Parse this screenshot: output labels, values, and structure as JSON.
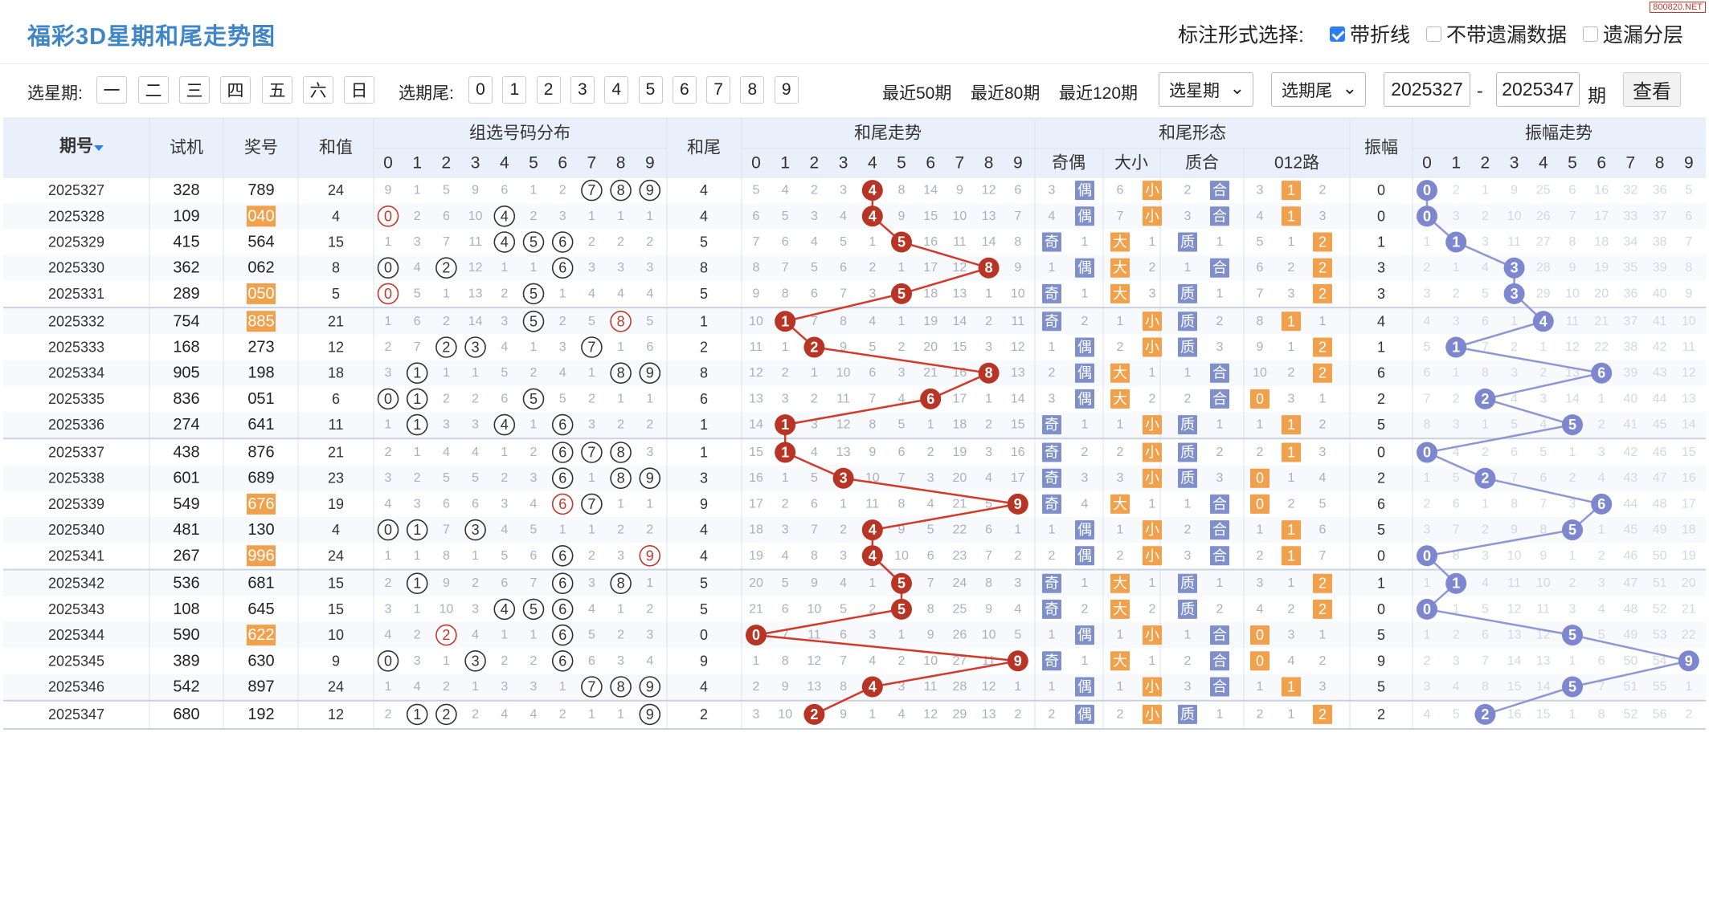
{
  "header": {
    "title": "福彩3D星期和尾走势图",
    "site": "800820.NET",
    "annot_label": "标注形式选择:",
    "opt_line": "带折线",
    "opt_nomiss": "不带遗漏数据",
    "opt_layer": "遗漏分层"
  },
  "filter": {
    "week_label": "选星期:",
    "weekdays": [
      "一",
      "二",
      "三",
      "四",
      "五",
      "六",
      "日"
    ],
    "tail_label": "选期尾:",
    "tails": [
      "0",
      "1",
      "2",
      "3",
      "4",
      "5",
      "6",
      "7",
      "8",
      "9"
    ],
    "recent50": "最近50期",
    "recent80": "最近80期",
    "recent120": "最近120期",
    "week_select": "选星期",
    "tail_select": "选期尾",
    "start": "2025327",
    "sep": "-",
    "end": "2025347",
    "unit": "期",
    "go": "查看"
  },
  "table": {
    "h_issue": "期号",
    "h_test": "试机",
    "h_prize": "奖号",
    "h_sum": "和值",
    "h_dist": "组选号码分布",
    "h_tail": "和尾",
    "h_trend": "和尾走势",
    "h_form": "和尾形态",
    "h_oe": "奇偶",
    "h_bs": "大小",
    "h_pc": "质合",
    "h_012": "012路",
    "h_amp": "振幅",
    "h_ampt": "振幅走势",
    "digits": [
      "0",
      "1",
      "2",
      "3",
      "4",
      "5",
      "6",
      "7",
      "8",
      "9"
    ],
    "sort_icon": "sort-arrow-icon"
  },
  "form_labels": {
    "odd": "奇",
    "even": "偶",
    "big": "大",
    "small": "小",
    "prime": "质",
    "comp": "合",
    "r0": "0",
    "r1": "1",
    "r2": "2"
  },
  "colors": {
    "accent": "#3f86c8",
    "red": "#c0392b",
    "ball_red": "#b83526",
    "ball_blue": "#7c87d0",
    "tag": "#7f8fca",
    "tag_orange": "#f1a04c",
    "prize_hl": "#f1a04c",
    "line_red": "#d23a2a",
    "line_blue": "#8e97d6"
  },
  "rows": [
    {
      "issue": "2025327",
      "test": "328",
      "prize": "789",
      "hl": false,
      "sum": "24",
      "dist": [
        "9",
        "1",
        "5",
        "9",
        "6",
        "1",
        "2",
        "O",
        "O",
        "O"
      ],
      "dist_red": [],
      "tail": "4",
      "trend": [
        "5",
        "4",
        "2",
        "3",
        "B",
        "8",
        "14",
        "9",
        "12",
        "6"
      ],
      "oe": [
        "3",
        "E"
      ],
      "bs": [
        "6",
        "S"
      ],
      "pc": [
        "2",
        "C"
      ],
      "r012": [
        "3",
        "R1",
        "2"
      ],
      "amp": "0",
      "ampt": [
        "B",
        "2",
        "1",
        "9",
        "25",
        "6",
        "16",
        "32",
        "36",
        "5"
      ]
    },
    {
      "issue": "2025328",
      "test": "109",
      "prize": "040",
      "hl": true,
      "sum": "4",
      "dist": [
        "O",
        "2",
        "6",
        "10",
        "O",
        "2",
        "3",
        "1",
        "1",
        "1"
      ],
      "dist_red": [
        0
      ],
      "tail": "4",
      "trend": [
        "6",
        "5",
        "3",
        "4",
        "B",
        "9",
        "15",
        "10",
        "13",
        "7"
      ],
      "oe": [
        "4",
        "E"
      ],
      "bs": [
        "7",
        "S"
      ],
      "pc": [
        "3",
        "C"
      ],
      "r012": [
        "4",
        "R1",
        "3"
      ],
      "amp": "0",
      "ampt": [
        "B",
        "3",
        "2",
        "10",
        "26",
        "7",
        "17",
        "33",
        "37",
        "6"
      ]
    },
    {
      "issue": "2025329",
      "test": "415",
      "prize": "564",
      "hl": false,
      "sum": "15",
      "dist": [
        "1",
        "3",
        "7",
        "11",
        "O",
        "O",
        "O",
        "2",
        "2",
        "2"
      ],
      "dist_red": [],
      "tail": "5",
      "trend": [
        "7",
        "6",
        "4",
        "5",
        "1",
        "B",
        "16",
        "11",
        "14",
        "8"
      ],
      "oe": [
        "O",
        "1"
      ],
      "bs": [
        "B",
        "1"
      ],
      "pc": [
        "P",
        "1"
      ],
      "r012": [
        "5",
        "1",
        "R2"
      ],
      "amp": "1",
      "ampt": [
        "1",
        "B",
        "3",
        "11",
        "27",
        "8",
        "18",
        "34",
        "38",
        "7"
      ]
    },
    {
      "issue": "2025330",
      "test": "362",
      "prize": "062",
      "hl": false,
      "sum": "8",
      "dist": [
        "O",
        "4",
        "O",
        "12",
        "1",
        "1",
        "O",
        "3",
        "3",
        "3"
      ],
      "dist_red": [],
      "tail": "8",
      "trend": [
        "8",
        "7",
        "5",
        "6",
        "2",
        "1",
        "17",
        "12",
        "B",
        "9"
      ],
      "oe": [
        "1",
        "E"
      ],
      "bs": [
        "B",
        "2"
      ],
      "pc": [
        "1",
        "C"
      ],
      "r012": [
        "6",
        "2",
        "R2"
      ],
      "amp": "3",
      "ampt": [
        "2",
        "1",
        "4",
        "B",
        "28",
        "9",
        "19",
        "35",
        "39",
        "8"
      ]
    },
    {
      "issue": "2025331",
      "test": "289",
      "prize": "050",
      "hl": true,
      "sum": "5",
      "dist": [
        "O",
        "5",
        "1",
        "13",
        "2",
        "O",
        "1",
        "4",
        "4",
        "4"
      ],
      "dist_red": [
        0
      ],
      "tail": "5",
      "trend": [
        "9",
        "8",
        "6",
        "7",
        "3",
        "B",
        "18",
        "13",
        "1",
        "10"
      ],
      "oe": [
        "O",
        "1"
      ],
      "bs": [
        "B",
        "3"
      ],
      "pc": [
        "P",
        "1"
      ],
      "r012": [
        "7",
        "3",
        "R2"
      ],
      "amp": "3",
      "ampt": [
        "3",
        "2",
        "5",
        "B",
        "29",
        "10",
        "20",
        "36",
        "40",
        "9"
      ]
    },
    {
      "issue": "2025332",
      "test": "754",
      "prize": "885",
      "hl": true,
      "sum": "21",
      "dist": [
        "1",
        "6",
        "2",
        "14",
        "3",
        "O",
        "2",
        "5",
        "O",
        "5"
      ],
      "dist_red": [
        8
      ],
      "tail": "1",
      "trend": [
        "10",
        "B",
        "7",
        "8",
        "4",
        "1",
        "19",
        "14",
        "2",
        "11"
      ],
      "oe": [
        "O",
        "2"
      ],
      "bs": [
        "1",
        "S"
      ],
      "pc": [
        "P",
        "2"
      ],
      "r012": [
        "8",
        "R1",
        "1"
      ],
      "amp": "4",
      "ampt": [
        "4",
        "3",
        "6",
        "1",
        "B",
        "11",
        "21",
        "37",
        "41",
        "10"
      ]
    },
    {
      "issue": "2025333",
      "test": "168",
      "prize": "273",
      "hl": false,
      "sum": "12",
      "dist": [
        "2",
        "7",
        "O",
        "O",
        "4",
        "1",
        "3",
        "O",
        "1",
        "6"
      ],
      "dist_red": [],
      "tail": "2",
      "trend": [
        "11",
        "1",
        "B",
        "9",
        "5",
        "2",
        "20",
        "15",
        "3",
        "12"
      ],
      "oe": [
        "1",
        "E"
      ],
      "bs": [
        "2",
        "S"
      ],
      "pc": [
        "P",
        "3"
      ],
      "r012": [
        "9",
        "1",
        "R2"
      ],
      "amp": "1",
      "ampt": [
        "5",
        "B",
        "7",
        "2",
        "1",
        "12",
        "22",
        "38",
        "42",
        "11"
      ]
    },
    {
      "issue": "2025334",
      "test": "905",
      "prize": "198",
      "hl": false,
      "sum": "18",
      "dist": [
        "3",
        "O",
        "1",
        "1",
        "5",
        "2",
        "4",
        "1",
        "O",
        "O"
      ],
      "dist_red": [],
      "tail": "8",
      "trend": [
        "12",
        "2",
        "1",
        "10",
        "6",
        "3",
        "21",
        "16",
        "B",
        "13"
      ],
      "oe": [
        "2",
        "E"
      ],
      "bs": [
        "B",
        "1"
      ],
      "pc": [
        "1",
        "C"
      ],
      "r012": [
        "10",
        "2",
        "R2"
      ],
      "amp": "6",
      "ampt": [
        "6",
        "1",
        "8",
        "3",
        "2",
        "13",
        "B",
        "39",
        "43",
        "12"
      ]
    },
    {
      "issue": "2025335",
      "test": "836",
      "prize": "051",
      "hl": false,
      "sum": "6",
      "dist": [
        "O",
        "O",
        "2",
        "2",
        "6",
        "O",
        "5",
        "2",
        "1",
        "1"
      ],
      "dist_red": [],
      "tail": "6",
      "trend": [
        "13",
        "3",
        "2",
        "11",
        "7",
        "4",
        "B",
        "17",
        "1",
        "14"
      ],
      "oe": [
        "3",
        "E"
      ],
      "bs": [
        "B",
        "2"
      ],
      "pc": [
        "2",
        "C"
      ],
      "r012": [
        "R0",
        "3",
        "1"
      ],
      "amp": "2",
      "ampt": [
        "7",
        "2",
        "B",
        "4",
        "3",
        "14",
        "1",
        "40",
        "44",
        "13"
      ]
    },
    {
      "issue": "2025336",
      "test": "274",
      "prize": "641",
      "hl": false,
      "sum": "11",
      "dist": [
        "1",
        "O",
        "3",
        "3",
        "O",
        "1",
        "O",
        "3",
        "2",
        "2"
      ],
      "dist_red": [],
      "tail": "1",
      "trend": [
        "14",
        "B",
        "3",
        "12",
        "8",
        "5",
        "1",
        "18",
        "2",
        "15"
      ],
      "oe": [
        "O",
        "1"
      ],
      "bs": [
        "1",
        "S"
      ],
      "pc": [
        "P",
        "1"
      ],
      "r012": [
        "1",
        "R1",
        "2"
      ],
      "amp": "5",
      "ampt": [
        "8",
        "3",
        "1",
        "5",
        "4",
        "B",
        "2",
        "41",
        "45",
        "14"
      ]
    },
    {
      "issue": "2025337",
      "test": "438",
      "prize": "876",
      "hl": false,
      "sum": "21",
      "dist": [
        "2",
        "1",
        "4",
        "4",
        "1",
        "2",
        "O",
        "O",
        "O",
        "3"
      ],
      "dist_red": [],
      "tail": "1",
      "trend": [
        "15",
        "B",
        "4",
        "13",
        "9",
        "6",
        "2",
        "19",
        "3",
        "16"
      ],
      "oe": [
        "O",
        "2"
      ],
      "bs": [
        "2",
        "S"
      ],
      "pc": [
        "P",
        "2"
      ],
      "r012": [
        "2",
        "R1",
        "3"
      ],
      "amp": "0",
      "ampt": [
        "B",
        "4",
        "2",
        "6",
        "5",
        "1",
        "3",
        "42",
        "46",
        "15"
      ]
    },
    {
      "issue": "2025338",
      "test": "601",
      "prize": "689",
      "hl": false,
      "sum": "23",
      "dist": [
        "3",
        "2",
        "5",
        "5",
        "2",
        "3",
        "O",
        "1",
        "O",
        "O"
      ],
      "dist_red": [],
      "tail": "3",
      "trend": [
        "16",
        "1",
        "5",
        "B",
        "10",
        "7",
        "3",
        "20",
        "4",
        "17"
      ],
      "oe": [
        "O",
        "3"
      ],
      "bs": [
        "3",
        "S"
      ],
      "pc": [
        "P",
        "3"
      ],
      "r012": [
        "R0",
        "1",
        "4"
      ],
      "amp": "2",
      "ampt": [
        "1",
        "5",
        "B",
        "7",
        "6",
        "2",
        "4",
        "43",
        "47",
        "16"
      ]
    },
    {
      "issue": "2025339",
      "test": "549",
      "prize": "676",
      "hl": true,
      "sum": "19",
      "dist": [
        "4",
        "3",
        "6",
        "6",
        "3",
        "4",
        "O",
        "O",
        "1",
        "1"
      ],
      "dist_red": [
        6
      ],
      "tail": "9",
      "trend": [
        "17",
        "2",
        "6",
        "1",
        "11",
        "8",
        "4",
        "21",
        "5",
        "B"
      ],
      "oe": [
        "O",
        "4"
      ],
      "bs": [
        "B",
        "1"
      ],
      "pc": [
        "1",
        "C"
      ],
      "r012": [
        "R0",
        "2",
        "5"
      ],
      "amp": "6",
      "ampt": [
        "2",
        "6",
        "1",
        "8",
        "7",
        "3",
        "B",
        "44",
        "48",
        "17"
      ]
    },
    {
      "issue": "2025340",
      "test": "481",
      "prize": "130",
      "hl": false,
      "sum": "4",
      "dist": [
        "O",
        "O",
        "7",
        "O",
        "4",
        "5",
        "1",
        "1",
        "2",
        "2"
      ],
      "dist_red": [],
      "tail": "4",
      "trend": [
        "18",
        "3",
        "7",
        "2",
        "B",
        "9",
        "5",
        "22",
        "6",
        "1"
      ],
      "oe": [
        "1",
        "E"
      ],
      "bs": [
        "1",
        "S"
      ],
      "pc": [
        "2",
        "C"
      ],
      "r012": [
        "1",
        "R1",
        "6"
      ],
      "amp": "5",
      "ampt": [
        "3",
        "7",
        "2",
        "9",
        "8",
        "B",
        "1",
        "45",
        "49",
        "18"
      ]
    },
    {
      "issue": "2025341",
      "test": "267",
      "prize": "996",
      "hl": true,
      "sum": "24",
      "dist": [
        "1",
        "1",
        "8",
        "1",
        "5",
        "6",
        "O",
        "2",
        "3",
        "O"
      ],
      "dist_red": [
        9
      ],
      "tail": "4",
      "trend": [
        "19",
        "4",
        "8",
        "3",
        "B",
        "10",
        "6",
        "23",
        "7",
        "2"
      ],
      "oe": [
        "2",
        "E"
      ],
      "bs": [
        "2",
        "S"
      ],
      "pc": [
        "3",
        "C"
      ],
      "r012": [
        "2",
        "R1",
        "7"
      ],
      "amp": "0",
      "ampt": [
        "B",
        "8",
        "3",
        "10",
        "9",
        "1",
        "2",
        "46",
        "50",
        "19"
      ]
    },
    {
      "issue": "2025342",
      "test": "536",
      "prize": "681",
      "hl": false,
      "sum": "15",
      "dist": [
        "2",
        "O",
        "9",
        "2",
        "6",
        "7",
        "O",
        "3",
        "O",
        "1"
      ],
      "dist_red": [],
      "tail": "5",
      "trend": [
        "20",
        "5",
        "9",
        "4",
        "1",
        "B",
        "7",
        "24",
        "8",
        "3"
      ],
      "oe": [
        "O",
        "1"
      ],
      "bs": [
        "B",
        "1"
      ],
      "pc": [
        "P",
        "1"
      ],
      "r012": [
        "3",
        "1",
        "R2"
      ],
      "amp": "1",
      "ampt": [
        "1",
        "B",
        "4",
        "11",
        "10",
        "2",
        "3",
        "47",
        "51",
        "20"
      ]
    },
    {
      "issue": "2025343",
      "test": "108",
      "prize": "645",
      "hl": false,
      "sum": "15",
      "dist": [
        "3",
        "1",
        "10",
        "3",
        "O",
        "O",
        "O",
        "4",
        "1",
        "2"
      ],
      "dist_red": [],
      "tail": "5",
      "trend": [
        "21",
        "6",
        "10",
        "5",
        "2",
        "B",
        "8",
        "25",
        "9",
        "4"
      ],
      "oe": [
        "O",
        "2"
      ],
      "bs": [
        "B",
        "2"
      ],
      "pc": [
        "P",
        "2"
      ],
      "r012": [
        "4",
        "2",
        "R2"
      ],
      "amp": "0",
      "ampt": [
        "B",
        "1",
        "5",
        "12",
        "11",
        "3",
        "4",
        "48",
        "52",
        "21"
      ]
    },
    {
      "issue": "2025344",
      "test": "590",
      "prize": "622",
      "hl": true,
      "sum": "10",
      "dist": [
        "4",
        "2",
        "O",
        "4",
        "1",
        "1",
        "O",
        "5",
        "2",
        "3"
      ],
      "dist_red": [
        2
      ],
      "tail": "0",
      "trend": [
        "B",
        "7",
        "11",
        "6",
        "3",
        "1",
        "9",
        "26",
        "10",
        "5"
      ],
      "oe": [
        "1",
        "E"
      ],
      "bs": [
        "1",
        "S"
      ],
      "pc": [
        "1",
        "C"
      ],
      "r012": [
        "R0",
        "3",
        "1"
      ],
      "amp": "5",
      "ampt": [
        "1",
        "2",
        "6",
        "13",
        "12",
        "B",
        "5",
        "49",
        "53",
        "22"
      ]
    },
    {
      "issue": "2025345",
      "test": "389",
      "prize": "630",
      "hl": false,
      "sum": "9",
      "dist": [
        "O",
        "3",
        "1",
        "O",
        "2",
        "2",
        "O",
        "6",
        "3",
        "4"
      ],
      "dist_red": [],
      "tail": "9",
      "trend": [
        "1",
        "8",
        "12",
        "7",
        "4",
        "2",
        "10",
        "27",
        "11",
        "B"
      ],
      "oe": [
        "O",
        "1"
      ],
      "bs": [
        "B",
        "1"
      ],
      "pc": [
        "2",
        "C"
      ],
      "r012": [
        "R0",
        "4",
        "2"
      ],
      "amp": "9",
      "ampt": [
        "2",
        "3",
        "7",
        "14",
        "13",
        "1",
        "6",
        "50",
        "54",
        "B"
      ]
    },
    {
      "issue": "2025346",
      "test": "542",
      "prize": "897",
      "hl": false,
      "sum": "24",
      "dist": [
        "1",
        "4",
        "2",
        "1",
        "3",
        "3",
        "1",
        "O",
        "O",
        "O"
      ],
      "dist_red": [],
      "tail": "4",
      "trend": [
        "2",
        "9",
        "13",
        "8",
        "B",
        "3",
        "11",
        "28",
        "12",
        "1"
      ],
      "oe": [
        "1",
        "E"
      ],
      "bs": [
        "1",
        "S"
      ],
      "pc": [
        "3",
        "C"
      ],
      "r012": [
        "1",
        "R1",
        "3"
      ],
      "amp": "5",
      "ampt": [
        "3",
        "4",
        "8",
        "15",
        "14",
        "B",
        "7",
        "51",
        "55",
        "1"
      ]
    },
    {
      "issue": "2025347",
      "test": "680",
      "prize": "192",
      "hl": false,
      "sum": "12",
      "dist": [
        "2",
        "O",
        "O",
        "2",
        "4",
        "4",
        "2",
        "1",
        "1",
        "O"
      ],
      "dist_red": [],
      "tail": "2",
      "trend": [
        "3",
        "10",
        "B",
        "9",
        "1",
        "4",
        "12",
        "29",
        "13",
        "2"
      ],
      "oe": [
        "2",
        "E"
      ],
      "bs": [
        "2",
        "S"
      ],
      "pc": [
        "P",
        "1"
      ],
      "r012": [
        "2",
        "1",
        "R2"
      ],
      "amp": "2",
      "ampt": [
        "4",
        "5",
        "B",
        "16",
        "15",
        "1",
        "8",
        "52",
        "56",
        "2"
      ]
    }
  ]
}
